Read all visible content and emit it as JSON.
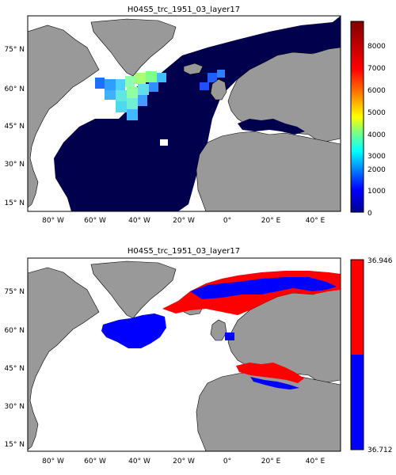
{
  "panels": [
    {
      "id": "top",
      "title": "H04S5_trc_1951_03_layer17",
      "x_ticks": [
        "80° W",
        "60° W",
        "40° W",
        "20° W",
        "0°",
        "20° E",
        "40° E"
      ],
      "y_ticks": [
        "75° N",
        "60° N",
        "45° N",
        "30° N",
        "15° N"
      ],
      "colorbar": {
        "type": "continuous",
        "colormap": "jet",
        "range": [
          0,
          8000
        ],
        "tick_labels": [
          "8000",
          "7000",
          "6000",
          "5000",
          "4000",
          "3000",
          "2000",
          "1000",
          "0"
        ]
      }
    },
    {
      "id": "bottom",
      "title": "H04S5_trc_1951_03_layer17",
      "x_ticks": [
        "80° W",
        "60° W",
        "40° W",
        "20° W",
        "0°",
        "20° E",
        "40° E"
      ],
      "y_ticks": [
        "75° N",
        "60° N",
        "45° N",
        "30° N",
        "15° N"
      ],
      "colorbar": {
        "type": "binary",
        "range": [
          36.712,
          36.946
        ],
        "tick_labels": [
          "36.946",
          "36.712"
        ],
        "colors": [
          "#ff0000",
          "#0000ff"
        ]
      }
    }
  ],
  "colors": {
    "land": "#999999",
    "ocean_fill": "#00004d",
    "no_data": "#ffffff",
    "high": "#ff0000",
    "low": "#0000ff"
  }
}
